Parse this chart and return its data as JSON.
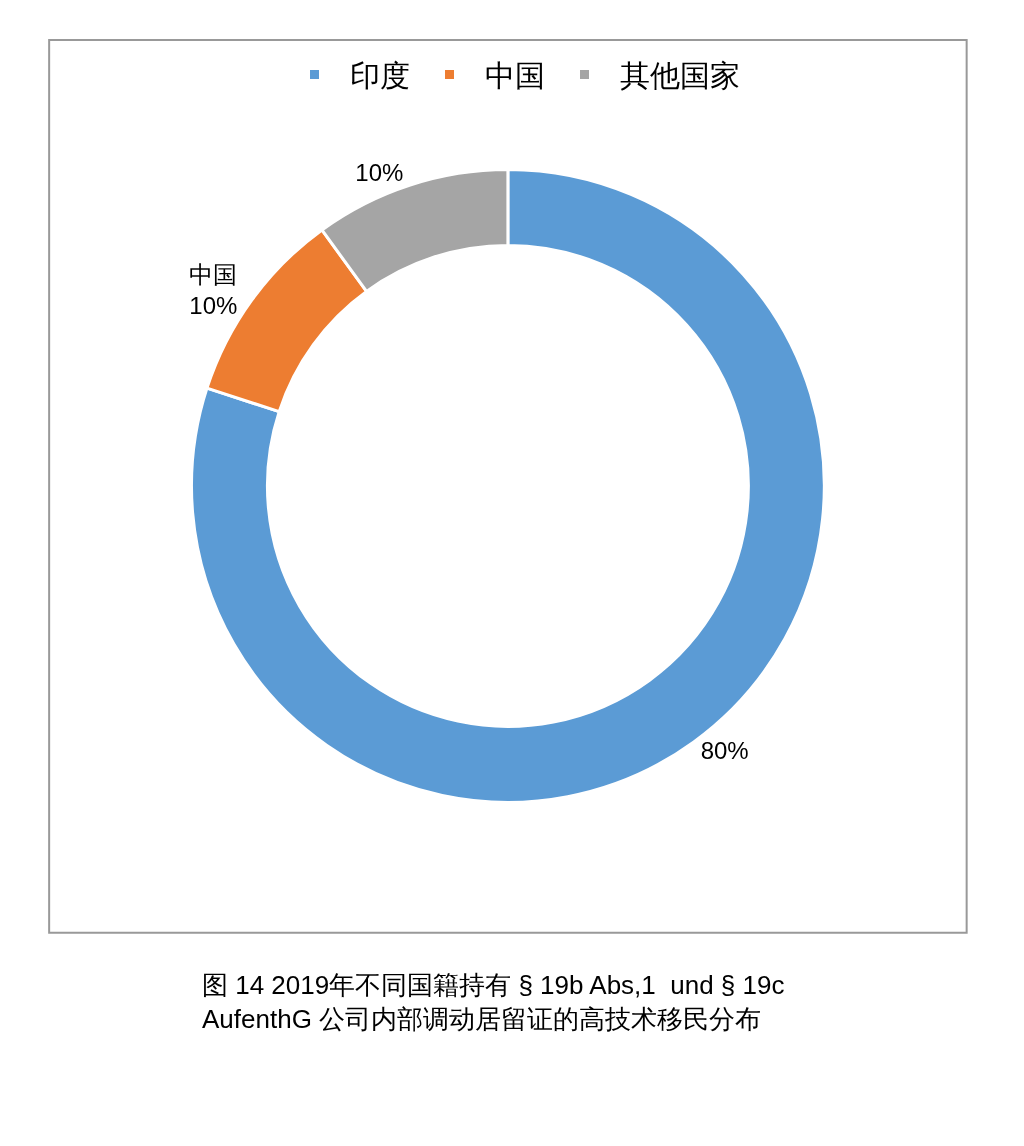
{
  "chart_data": {
    "type": "donut",
    "categories": [
      "印度",
      "中国",
      "其他国家"
    ],
    "values": [
      80,
      10,
      10
    ],
    "colors": [
      "#5b9bd5",
      "#ed7d31",
      "#a5a5a5"
    ],
    "value_labels": [
      "80%",
      "中国\n10%",
      "10%"
    ],
    "legend": "top",
    "annotations": [
      "图 14 2019年不同国籍持有 § 19b Abs,1  und § 19c AufenthG 公司内部调动居留证的高技术移民分布"
    ]
  }
}
